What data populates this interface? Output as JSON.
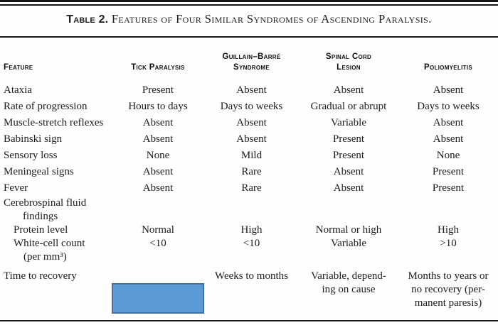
{
  "title": {
    "prefix": "Table 2.",
    "rest": " Features of Four Similar Syndromes of Ascending Paralysis."
  },
  "colors": {
    "highlight-fill": "#5b9bd5",
    "highlight-border": "#41719c",
    "rule": "#161616",
    "ink": "#1c1c1c"
  },
  "table": {
    "columns": [
      "Feature",
      "Tick Paralysis",
      "Guillain–Barré\nSyndrome",
      "Spinal Cord\nLesion",
      "Poliomyelitis"
    ],
    "rows": [
      {
        "feature": "Ataxia",
        "values": [
          "Present",
          "Absent",
          "Absent",
          "Absent"
        ]
      },
      {
        "feature": "Rate of progression",
        "values": [
          "Hours to days",
          "Days to weeks",
          "Gradual or abrupt",
          "Days to weeks"
        ]
      },
      {
        "feature": "Muscle-stretch reflexes",
        "values": [
          "Absent",
          "Absent",
          "Variable",
          "Absent"
        ]
      },
      {
        "feature": "Babinski sign",
        "values": [
          "Absent",
          "Absent",
          "Present",
          "Absent"
        ]
      },
      {
        "feature": "Sensory loss",
        "values": [
          "None",
          "Mild",
          "Present",
          "None"
        ]
      },
      {
        "feature": "Meningeal signs",
        "values": [
          "Absent",
          "Rare",
          "Absent",
          "Present"
        ]
      },
      {
        "feature": "Fever",
        "values": [
          "Absent",
          "Rare",
          "Absent",
          "Present"
        ]
      },
      {
        "feature": "Cerebrospinal fluid\nfindings",
        "values": [
          "",
          "",
          "",
          ""
        ]
      },
      {
        "feature": "Protein level",
        "values": [
          "Normal",
          "High",
          "Normal or high",
          "High"
        ]
      },
      {
        "feature": "White-cell count\n(per mm³)",
        "values": [
          "<10",
          "<10",
          "Variable",
          ">10"
        ]
      },
      {
        "feature": "Time to recovery",
        "values": [
          "",
          "Weeks to months",
          "Variable, depend-\ning on cause",
          "Months to years or\nno recovery (per-\nmanent paresis)"
        ],
        "redacted_column_index": 1
      }
    ]
  }
}
